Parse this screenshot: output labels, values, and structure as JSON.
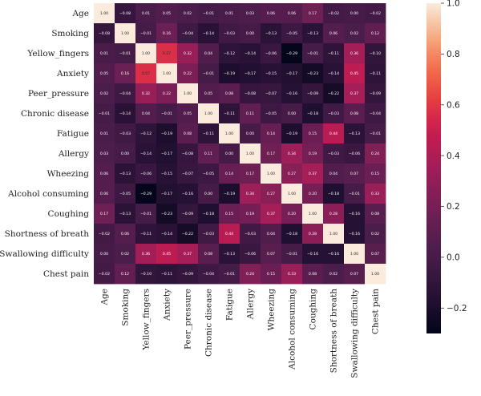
{
  "chart_data": {
    "type": "heatmap",
    "title": "",
    "xlabel": "",
    "ylabel": "",
    "rows": [
      "Age",
      "Smoking",
      "Yellow_fingers",
      "Anxiety",
      "Peer_pressure",
      "Chronic disease",
      "Fatigue",
      "Allergy",
      "Wheezing",
      "Alcohol consuming",
      "Coughing",
      "Shortness of breath",
      "Swallowing difficulty",
      "Chest pain"
    ],
    "columns": [
      "Age",
      "Smoking",
      "Yellow_fingers",
      "Anxiety",
      "Peer_pressure",
      "Chronic disease",
      "Fatigue",
      "Allergy",
      "Wheezing",
      "Alcohol consuming",
      "Coughing",
      "Shortness of breath",
      "Swallowing difficulty",
      "Chest pain"
    ],
    "values": [
      [
        1.0,
        -0.08,
        0.01,
        0.05,
        0.02,
        -0.01,
        0.01,
        0.03,
        0.06,
        0.06,
        0.17,
        -0.02,
        0.0,
        -0.02
      ],
      [
        -0.08,
        1.0,
        -0.01,
        0.16,
        -0.04,
        -0.14,
        -0.03,
        0.0,
        -0.13,
        -0.05,
        -0.13,
        0.06,
        0.02,
        0.12
      ],
      [
        0.01,
        -0.01,
        1.0,
        0.57,
        0.32,
        0.04,
        -0.12,
        -0.14,
        -0.06,
        -0.29,
        -0.01,
        -0.11,
        0.36,
        -0.1
      ],
      [
        0.05,
        0.16,
        0.57,
        1.0,
        0.22,
        -0.01,
        -0.19,
        -0.17,
        -0.15,
        -0.17,
        -0.23,
        -0.14,
        0.45,
        -0.11
      ],
      [
        0.02,
        -0.04,
        0.32,
        0.22,
        1.0,
        0.05,
        0.08,
        -0.08,
        -0.07,
        -0.16,
        -0.09,
        -0.22,
        0.37,
        -0.09
      ],
      [
        -0.01,
        -0.14,
        0.04,
        -0.01,
        0.05,
        1.0,
        -0.11,
        0.11,
        -0.05,
        0.0,
        -0.18,
        -0.03,
        0.08,
        -0.04
      ],
      [
        0.01,
        -0.03,
        -0.12,
        -0.19,
        0.08,
        -0.11,
        1.0,
        0.0,
        0.14,
        -0.19,
        0.15,
        0.44,
        -0.13,
        -0.01
      ],
      [
        0.03,
        0.0,
        -0.14,
        -0.17,
        -0.08,
        0.11,
        0.0,
        1.0,
        0.17,
        0.34,
        0.19,
        -0.03,
        -0.06,
        0.24
      ],
      [
        0.06,
        -0.13,
        -0.06,
        -0.15,
        -0.07,
        -0.05,
        0.14,
        0.17,
        1.0,
        0.27,
        0.37,
        0.04,
        0.07,
        0.15
      ],
      [
        0.06,
        -0.05,
        -0.29,
        -0.17,
        -0.16,
        0.0,
        -0.19,
        0.34,
        0.27,
        1.0,
        0.2,
        -0.18,
        -0.01,
        0.33
      ],
      [
        0.17,
        -0.13,
        -0.01,
        -0.23,
        -0.09,
        -0.18,
        0.15,
        0.19,
        0.37,
        0.2,
        1.0,
        0.28,
        -0.16,
        0.08
      ],
      [
        -0.02,
        0.06,
        -0.11,
        -0.14,
        -0.22,
        -0.03,
        0.44,
        -0.03,
        0.04,
        -0.18,
        0.28,
        1.0,
        -0.16,
        0.02
      ],
      [
        0.0,
        0.02,
        0.36,
        0.45,
        0.37,
        0.08,
        -0.13,
        -0.06,
        0.07,
        -0.01,
        -0.16,
        -0.16,
        1.0,
        0.07
      ],
      [
        -0.02,
        0.12,
        -0.1,
        -0.11,
        -0.09,
        -0.04,
        -0.01,
        0.24,
        0.15,
        0.33,
        0.08,
        0.02,
        0.07,
        1.0
      ]
    ],
    "value_format": "2 decimals",
    "colorbar": {
      "min": -0.3,
      "max": 1.0,
      "ticks": [
        1.0,
        0.8,
        0.6,
        0.4,
        0.2,
        0.0,
        -0.2
      ],
      "tick_labels": [
        "1.0",
        "0.8",
        "0.6",
        "0.4",
        "0.2",
        "0.0",
        "−0.2"
      ],
      "colormap": "rocket"
    },
    "grid": false,
    "legend": "right"
  }
}
